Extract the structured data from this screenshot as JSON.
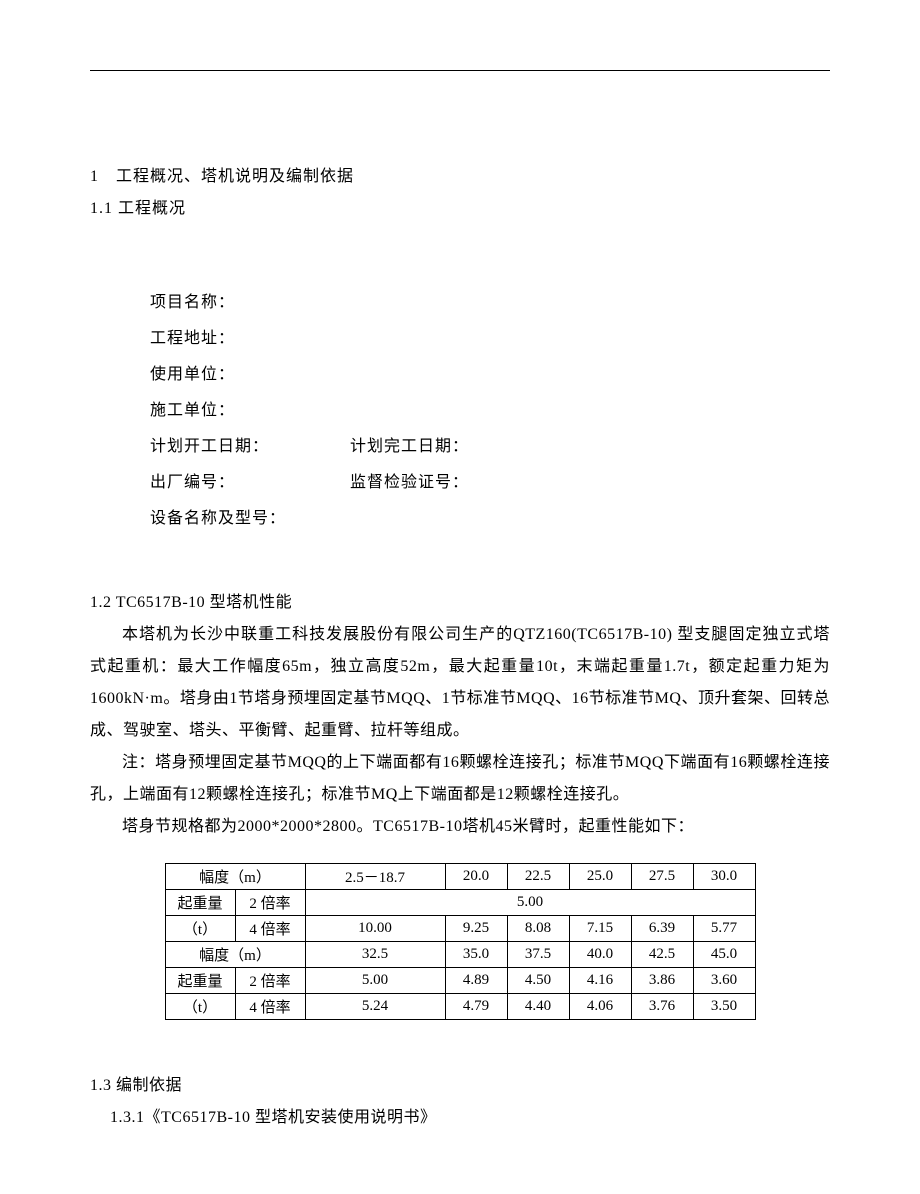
{
  "headings": {
    "h1": "1　工程概况、塔机说明及编制依据",
    "h1_1": "1.1 工程概况",
    "h1_2": "1.2 TC6517B-10 型塔机性能",
    "h1_3": "1.3 编制依据",
    "h1_3_1": "1.3.1《TC6517B-10 型塔机安装使用说明书》"
  },
  "info": {
    "project_name_label": "项目名称：",
    "project_addr_label": "工程地址：",
    "user_unit_label": "使用单位：",
    "construction_unit_label": "施工单位：",
    "plan_start_label": "计划开工日期：",
    "plan_end_label": "计划完工日期：",
    "factory_no_label": "出厂编号：",
    "supervise_cert_label": "监督检验证号：",
    "device_name_model_label": "设备名称及型号："
  },
  "paras": {
    "p1": "本塔机为长沙中联重工科技发展股份有限公司生产的QTZ160(TC6517B-10) 型支腿固定独立式塔式起重机：最大工作幅度65m，独立高度52m，最大起重量10t，末端起重量1.7t，额定起重力矩为1600kN·m。塔身由1节塔身预埋固定基节MQQ、1节标准节MQQ、16节标准节MQ、顶升套架、回转总成、驾驶室、塔头、平衡臂、起重臂、拉杆等组成。",
    "p2": "注：塔身预埋固定基节MQQ的上下端面都有16颗螺栓连接孔；标准节MQQ下端面有16颗螺栓连接孔，上端面有12颗螺栓连接孔；标准节MQ上下端面都是12颗螺栓连接孔。",
    "p3": "塔身节规格都为2000*2000*2800。TC6517B-10塔机45米臂时，起重性能如下："
  },
  "table": {
    "labels": {
      "fudu": "幅度（m）",
      "qizhongliang": "起重量",
      "unit_t": "（t）",
      "rate2": "2 倍率",
      "rate4": "4 倍率"
    },
    "block1": {
      "fudu": [
        "2.5－18.7",
        "20.0",
        "22.5",
        "25.0",
        "27.5",
        "30.0"
      ],
      "rate2_merged": "5.00",
      "rate4": [
        "10.00",
        "9.25",
        "8.08",
        "7.15",
        "6.39",
        "5.77"
      ]
    },
    "block2": {
      "fudu": [
        "32.5",
        "35.0",
        "37.5",
        "40.0",
        "42.5",
        "45.0"
      ],
      "rate2": [
        "5.00",
        "4.89",
        "4.50",
        "4.16",
        "3.86",
        "3.60"
      ],
      "rate4": [
        "5.24",
        "4.79",
        "4.40",
        "4.06",
        "3.76",
        "3.50"
      ]
    }
  },
  "colors": {
    "text": "#000000",
    "background": "#ffffff",
    "border": "#000000"
  }
}
